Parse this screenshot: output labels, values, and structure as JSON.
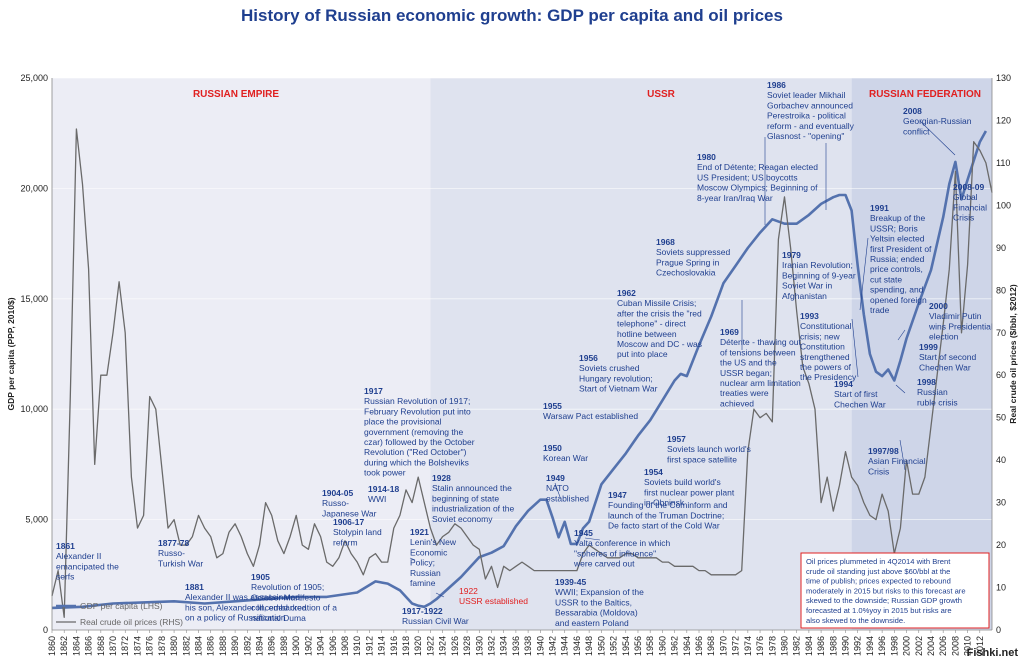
{
  "title": "History of Russian economic growth: GDP per capita and oil prices",
  "watermark": "Fishki.net",
  "chart_data": {
    "type": "line",
    "xlim": [
      1860,
      2014
    ],
    "xticks": [
      1860,
      1862,
      1864,
      1866,
      1868,
      1870,
      1872,
      1874,
      1876,
      1878,
      1880,
      1882,
      1884,
      1886,
      1888,
      1890,
      1892,
      1894,
      1896,
      1898,
      1900,
      1902,
      1904,
      1906,
      1908,
      1910,
      1912,
      1914,
      1916,
      1918,
      1920,
      1922,
      1924,
      1926,
      1928,
      1930,
      1932,
      1934,
      1936,
      1938,
      1940,
      1942,
      1944,
      1946,
      1948,
      1950,
      1952,
      1954,
      1956,
      1958,
      1960,
      1962,
      1964,
      1966,
      1968,
      1970,
      1972,
      1974,
      1976,
      1978,
      1980,
      1982,
      1984,
      1986,
      1988,
      1990,
      1992,
      1994,
      1996,
      1998,
      2000,
      2002,
      2004,
      2006,
      2008,
      2010,
      2012
    ],
    "y_left": {
      "label": "GDP per capita (PPP, 2010$)",
      "ylim": [
        0,
        25000
      ],
      "ticks": [
        "0",
        "5,000",
        "10,000",
        "15,000",
        "20,000",
        "25,000"
      ],
      "tick_values": [
        0,
        5000,
        10000,
        15000,
        20000,
        25000
      ]
    },
    "y_right": {
      "label": "Real crude oil prices ($/bbl, $2012)",
      "ylim": [
        0,
        130
      ],
      "ticks": [
        0,
        10,
        20,
        30,
        40,
        50,
        60,
        70,
        80,
        90,
        100,
        110,
        120,
        130
      ]
    },
    "eras": [
      {
        "name": "RUSSIAN EMPIRE",
        "from": 1860,
        "to": 1922,
        "color": "#ecedf5"
      },
      {
        "name": "USSR",
        "from": 1922,
        "to": 1991,
        "color": "#dfe3ef"
      },
      {
        "name": "RUSSIAN FEDERATION",
        "from": 1991,
        "to": 2014,
        "color": "#ced5e8"
      }
    ],
    "series": [
      {
        "name": "GDP per capita (LHS)",
        "axis": "left",
        "color": "#5472ae",
        "width": 2.6,
        "x": [
          1860,
          1865,
          1870,
          1875,
          1880,
          1885,
          1890,
          1895,
          1900,
          1905,
          1910,
          1913,
          1915,
          1917,
          1919,
          1920,
          1921,
          1922,
          1923,
          1925,
          1927,
          1928,
          1930,
          1932,
          1934,
          1936,
          1938,
          1940,
          1941,
          1942,
          1943,
          1944,
          1945,
          1946,
          1947,
          1948,
          1950,
          1952,
          1954,
          1956,
          1958,
          1960,
          1962,
          1963,
          1964,
          1966,
          1968,
          1970,
          1972,
          1974,
          1976,
          1978,
          1980,
          1982,
          1984,
          1986,
          1988,
          1989,
          1990,
          1991,
          1992,
          1993,
          1994,
          1995,
          1996,
          1997,
          1998,
          1999,
          2000,
          2002,
          2004,
          2006,
          2007,
          2008,
          2009,
          2010,
          2012,
          2013
        ],
        "values": [
          1000,
          1050,
          1200,
          1250,
          1300,
          1200,
          1300,
          1400,
          1500,
          1500,
          1700,
          2200,
          2100,
          1800,
          1200,
          1100,
          1050,
          1200,
          1400,
          1900,
          2400,
          2700,
          3300,
          3500,
          3800,
          4700,
          5400,
          5900,
          5900,
          5100,
          4200,
          4900,
          3900,
          3900,
          4600,
          4900,
          6600,
          7300,
          8000,
          8800,
          9500,
          10400,
          11300,
          11600,
          11500,
          12900,
          14200,
          15700,
          16500,
          17300,
          18000,
          18600,
          18400,
          18400,
          18800,
          19300,
          19600,
          19700,
          19700,
          19000,
          16500,
          14300,
          12500,
          11700,
          11500,
          11800,
          11300,
          12200,
          13200,
          14800,
          16300,
          18700,
          20200,
          21200,
          19500,
          20400,
          22100,
          22600
        ]
      },
      {
        "name": "Real crude oil prices (RHS)",
        "axis": "right",
        "color": "#6a6a6a",
        "width": 1.3,
        "x": [
          1860,
          1861,
          1862,
          1863,
          1864,
          1865,
          1866,
          1867,
          1868,
          1869,
          1870,
          1871,
          1872,
          1873,
          1874,
          1875,
          1876,
          1877,
          1878,
          1879,
          1880,
          1881,
          1882,
          1883,
          1884,
          1885,
          1886,
          1887,
          1888,
          1889,
          1890,
          1891,
          1892,
          1893,
          1894,
          1895,
          1896,
          1897,
          1898,
          1899,
          1900,
          1901,
          1902,
          1903,
          1904,
          1905,
          1906,
          1907,
          1908,
          1909,
          1910,
          1911,
          1912,
          1913,
          1914,
          1915,
          1916,
          1917,
          1918,
          1919,
          1920,
          1921,
          1922,
          1923,
          1924,
          1925,
          1926,
          1927,
          1928,
          1929,
          1930,
          1931,
          1932,
          1933,
          1934,
          1935,
          1936,
          1937,
          1938,
          1939,
          1940,
          1941,
          1942,
          1943,
          1944,
          1945,
          1946,
          1947,
          1948,
          1949,
          1950,
          1951,
          1952,
          1953,
          1954,
          1955,
          1956,
          1957,
          1958,
          1959,
          1960,
          1961,
          1962,
          1963,
          1964,
          1965,
          1966,
          1967,
          1968,
          1969,
          1970,
          1971,
          1972,
          1973,
          1974,
          1975,
          1976,
          1977,
          1978,
          1979,
          1980,
          1981,
          1982,
          1983,
          1984,
          1985,
          1986,
          1987,
          1988,
          1989,
          1990,
          1991,
          1992,
          1993,
          1994,
          1995,
          1996,
          1997,
          1998,
          1999,
          2000,
          2001,
          2002,
          2003,
          2004,
          2005,
          2006,
          2007,
          2008,
          2009,
          2010,
          2011,
          2012,
          2013,
          2014
        ],
        "values": [
          8,
          14,
          3,
          55,
          118,
          105,
          85,
          39,
          60,
          60,
          70,
          82,
          70,
          36,
          24,
          27,
          55,
          52,
          38,
          24,
          26,
          20,
          20,
          22,
          27,
          24,
          22,
          17,
          18,
          23,
          25,
          22,
          18,
          15,
          20,
          30,
          27,
          21,
          18,
          22,
          27,
          20,
          19,
          25,
          22,
          16,
          15,
          17,
          21,
          18,
          16,
          13,
          17,
          18,
          16,
          16,
          24,
          27,
          33,
          30,
          36,
          30,
          24,
          20,
          22,
          23,
          25,
          24,
          22,
          20,
          19,
          12,
          15,
          10,
          15,
          14,
          15,
          16,
          15,
          14,
          14,
          14,
          14,
          14,
          14,
          14,
          14,
          18,
          20,
          19,
          18,
          17,
          17,
          17,
          18,
          18,
          17,
          17,
          17,
          17,
          16,
          16,
          15,
          15,
          15,
          15,
          14,
          14,
          13,
          13,
          13,
          13,
          13,
          14,
          42,
          52,
          50,
          51,
          49,
          92,
          102,
          90,
          75,
          62,
          58,
          52,
          30,
          36,
          28,
          34,
          42,
          36,
          34,
          30,
          27,
          26,
          32,
          28,
          18,
          24,
          40,
          32,
          32,
          36,
          48,
          60,
          72,
          85,
          108,
          70,
          86,
          115,
          113,
          110,
          103
        ]
      }
    ]
  },
  "eras_labels": {
    "empire": "RUSSIAN EMPIRE",
    "ussr": "USSR",
    "federation": "RUSSIAN FEDERATION"
  },
  "legend": {
    "gdp": "GDP per capita (LHS)",
    "oil": "Real crude oil prices (RHS)"
  },
  "annotations": [
    {
      "year": "1861",
      "lines": [
        "Alexander II",
        "emancipated the",
        "serfs"
      ]
    },
    {
      "year": "1877-78",
      "lines": [
        "Russo-",
        "Turkish War"
      ]
    },
    {
      "year": "1881",
      "lines": [
        "Alexander II was assassinated;",
        "his son, Alexander III, embarked",
        "on a policy of Russification"
      ]
    },
    {
      "year": "1904-05",
      "lines": [
        "Russo-",
        "Japanese War"
      ]
    },
    {
      "year": "1905",
      "lines": [
        "Revolution of 1905;",
        "October Manifesto",
        "conceded creation of a",
        "national Duma"
      ]
    },
    {
      "year": "1906-17",
      "lines": [
        "Stolypin land",
        "reform"
      ]
    },
    {
      "year": "1914-18",
      "lines": [
        "WWI"
      ]
    },
    {
      "year": "1917",
      "lines": [
        "Russian Revolution of 1917;",
        "February Revolution put into",
        "place the provisional",
        "government (removing the",
        "czar) followed by the October",
        "Revolution (\"Red October\")",
        "during which the Bolsheviks",
        "took power"
      ]
    },
    {
      "year": "1917-1922",
      "lines": [
        "Russian Civil War"
      ]
    },
    {
      "year": "1921",
      "lines": [
        "Lenin's New",
        "Economic",
        "Policy;",
        "Russian",
        "famine"
      ]
    },
    {
      "year": "1922",
      "lines": [
        "USSR established"
      ]
    },
    {
      "year": "1928",
      "lines": [
        "Stalin announced the",
        "beginning of state",
        "industrialization of the",
        "Soviet economy"
      ]
    },
    {
      "year": "1939-45",
      "lines": [
        "WWII; Expansion of the",
        "USSR to the Baltics,",
        "Bessarabia (Moldova)",
        "and eastern Poland"
      ]
    },
    {
      "year": "1945",
      "lines": [
        "Yalta conference in which",
        "\"spheres of influence\"",
        "were carved out"
      ]
    },
    {
      "year": "1947",
      "lines": [
        "Founding of the Cominform and",
        "launch of the Truman Doctrine;",
        "De facto start of the Cold War"
      ]
    },
    {
      "year": "1949",
      "lines": [
        "NATO",
        "established"
      ]
    },
    {
      "year": "1950",
      "lines": [
        "Korean War"
      ]
    },
    {
      "year": "1954",
      "lines": [
        "Soviets build world's",
        "first nuclear power plant",
        "in Obninsk"
      ]
    },
    {
      "year": "1955",
      "lines": [
        "Warsaw Pact established"
      ]
    },
    {
      "year": "1956",
      "lines": [
        "Soviets crushed",
        "Hungary revolution;",
        "Start of Vietnam War"
      ]
    },
    {
      "year": "1957",
      "lines": [
        "Soviets launch world's",
        "first space satellite"
      ]
    },
    {
      "year": "1962",
      "lines": [
        "Cuban Missile Crisis;",
        "after the crisis the \"red",
        "telephone\" - direct",
        "hotline between",
        "Moscow and DC - was",
        "put into place"
      ]
    },
    {
      "year": "1968",
      "lines": [
        "Soviets suppressed",
        "Prague Spring in",
        "Czechoslovakia"
      ]
    },
    {
      "year": "1969",
      "lines": [
        "Détente - thawing out",
        "of tensions between",
        "the US and the",
        "USSR began;",
        "nuclear arm limitation",
        "treaties were",
        "achieved"
      ]
    },
    {
      "year": "1979",
      "lines": [
        "Iranian Revolution;",
        "Beginning of 9-year",
        "Soviet War in",
        "Afghanistan"
      ]
    },
    {
      "year": "1980",
      "lines": [
        "End of Détente; Reagan elected",
        "US President; US boycotts",
        "Moscow Olympics; Beginning of",
        "8-year Iran/Iraq War"
      ]
    },
    {
      "year": "1986",
      "lines": [
        "Soviet leader Mikhail",
        "Gorbachev announced",
        "Perestroika - political",
        "reform - and eventually",
        "Glasnost - \"opening\""
      ]
    },
    {
      "year": "1991",
      "lines": [
        "Breakup of the",
        "USSR; Boris",
        "Yeltsin elected",
        "first President of",
        "Russia; ended",
        "price controls,",
        "cut state",
        "spending, and",
        "opened foreign",
        "trade"
      ]
    },
    {
      "year": "1993",
      "lines": [
        "Constitutional",
        "crisis; new",
        "Constitution",
        "strengthened",
        "the powers of",
        "the Presidency"
      ]
    },
    {
      "year": "1994",
      "lines": [
        "Start of first",
        "Chechen War"
      ]
    },
    {
      "year": "1997/98",
      "lines": [
        "Asian Financial",
        "Crisis"
      ]
    },
    {
      "year": "1998",
      "lines": [
        "Russian",
        "ruble crisis"
      ]
    },
    {
      "year": "1999",
      "lines": [
        "Start of second",
        "Chechen War"
      ]
    },
    {
      "year": "2000",
      "lines": [
        "Vladimir Putin",
        "wins Presidential",
        "election"
      ]
    },
    {
      "year": "2008",
      "lines": [
        "Georgian-Russian",
        "conflict"
      ]
    },
    {
      "year": "2008-09",
      "lines": [
        "Global",
        "Financial",
        "Crisis"
      ]
    }
  ],
  "note": {
    "lines": [
      "Oil prices plummeted in 4Q2014 with Brent",
      "crude oil standing just above $60/bbl at the",
      "time of publish; prices expected to rebound",
      "moderately in 2015 but risks to this forecast are",
      "skewed to the downside; Russian GDP growth",
      "forecasted at 1.0%yoy in 2015 but risks are",
      "also skewed to the downside."
    ],
    "border_color": "#e02020"
  }
}
